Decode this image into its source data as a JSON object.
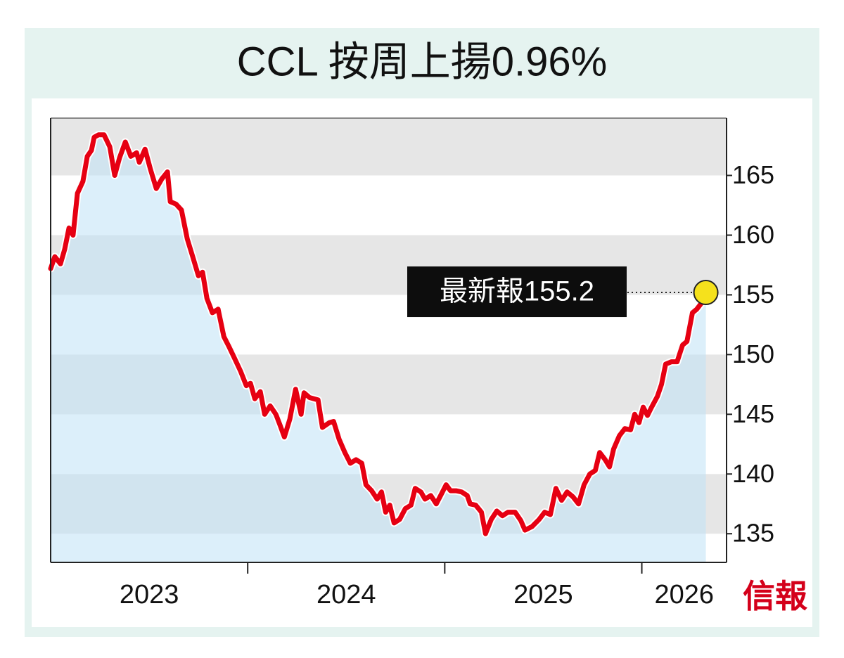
{
  "chart_data": {
    "type": "line",
    "title": "CCL 按周上揚0.96%",
    "annotation": "最新報155.2",
    "source_logo": "信報",
    "x": [
      2023.0,
      2023.021,
      2023.05,
      2023.071,
      2023.093,
      2023.114,
      2023.136,
      2023.164,
      2023.186,
      2023.207,
      2023.221,
      2023.243,
      2023.271,
      2023.3,
      2023.325,
      2023.35,
      2023.379,
      2023.407,
      2023.436,
      2023.45,
      2023.479,
      2023.507,
      2023.536,
      2023.564,
      2023.593,
      2023.607,
      2023.636,
      2023.664,
      2023.693,
      2023.721,
      2023.75,
      2023.771,
      2023.793,
      2023.821,
      2023.85,
      2023.879,
      2023.907,
      2023.936,
      2023.964,
      2023.993,
      2024.014,
      2024.036,
      2024.064,
      2024.086,
      2024.114,
      2024.143,
      2024.164,
      2024.186,
      2024.214,
      2024.243,
      2024.271,
      2024.286,
      2024.314,
      2024.357,
      2024.379,
      2024.414,
      2024.436,
      2024.464,
      2024.493,
      2024.521,
      2024.55,
      2024.579,
      2024.6,
      2024.629,
      2024.657,
      2024.679,
      2024.7,
      2024.721,
      2024.743,
      2024.771,
      2024.8,
      2024.829,
      2024.85,
      2024.879,
      2024.9,
      2024.929,
      2024.957,
      2024.979,
      2025.007,
      2025.029,
      2025.057,
      2025.086,
      2025.114,
      2025.129,
      2025.157,
      2025.186,
      2025.207,
      2025.236,
      2025.264,
      2025.293,
      2025.321,
      2025.357,
      2025.386,
      2025.407,
      2025.443,
      2025.479,
      2025.507,
      2025.536,
      2025.564,
      2025.593,
      2025.621,
      2025.65,
      2025.679,
      2025.707,
      2025.736,
      2025.764,
      2025.786,
      2025.814,
      2025.836,
      2025.857,
      2025.886,
      2025.914,
      2025.943,
      2025.964,
      2025.986,
      2026.007,
      2026.029,
      2026.05,
      2026.079,
      2026.1,
      2026.121,
      2026.15,
      2026.179,
      2026.207,
      2026.229,
      2026.257,
      2026.279,
      2026.307,
      2026.325
    ],
    "series": [
      {
        "color": "#e60012",
        "values": [
          157.2,
          158.2,
          157.6,
          158.8,
          160.6,
          160.0,
          163.5,
          164.5,
          166.6,
          167.1,
          168.2,
          168.4,
          168.4,
          167.4,
          165.0,
          166.5,
          167.8,
          166.6,
          166.9,
          166.1,
          167.2,
          165.5,
          163.9,
          164.7,
          165.3,
          162.8,
          162.6,
          162.1,
          159.7,
          158.2,
          156.6,
          156.9,
          154.7,
          153.5,
          153.8,
          151.5,
          150.6,
          149.6,
          148.6,
          147.4,
          147.6,
          146.3,
          146.9,
          145.0,
          145.7,
          145.0,
          144.1,
          143.1,
          144.6,
          147.1,
          145.0,
          146.8,
          146.4,
          146.2,
          143.9,
          144.3,
          144.4,
          142.9,
          141.8,
          140.9,
          141.2,
          140.9,
          139.1,
          138.6,
          137.9,
          138.5,
          136.8,
          137.4,
          135.9,
          136.2,
          137.1,
          137.4,
          138.8,
          138.5,
          137.9,
          138.2,
          137.5,
          138.2,
          139.1,
          138.6,
          138.6,
          138.5,
          138.2,
          137.5,
          137.4,
          136.8,
          135.0,
          136.2,
          136.9,
          136.5,
          136.8,
          136.8,
          136.1,
          135.3,
          135.6,
          136.2,
          136.8,
          136.6,
          138.8,
          137.8,
          138.5,
          138.1,
          137.5,
          139.1,
          140.0,
          140.3,
          141.8,
          141.2,
          140.6,
          142.1,
          143.2,
          143.8,
          143.7,
          145.0,
          144.3,
          145.6,
          144.9,
          145.6,
          146.5,
          147.5,
          149.2,
          149.4,
          149.4,
          150.8,
          151.1,
          153.5,
          153.8,
          154.4,
          155.2
        ]
      }
    ],
    "area_color": "#bfe2f6",
    "marker_color": "#f5e11c",
    "xlim": [
      2023,
      2026.43
    ],
    "xticks": [
      2024,
      2025,
      2026
    ],
    "xlabels": [
      "2023",
      "2024",
      "2025",
      "2026"
    ],
    "ylim": [
      132.6,
      169.8
    ],
    "yticks": [
      135,
      140,
      145,
      150,
      155,
      160,
      165
    ],
    "y_axis_side": "right",
    "banded_grid": true
  }
}
